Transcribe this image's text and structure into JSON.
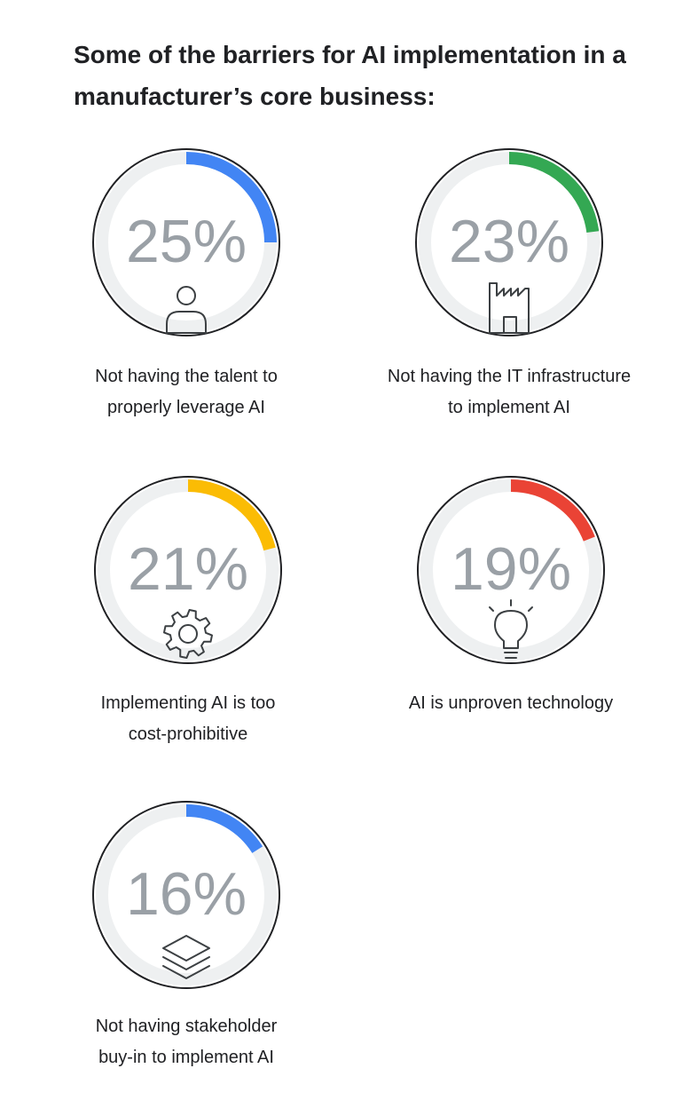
{
  "title": "Some of the barriers for AI implementation in a manufacturer’s core business:",
  "chart_data": {
    "type": "gauge",
    "items": [
      {
        "value": 25,
        "value_label": "25%",
        "label": "Not having the talent to properly leverage AI",
        "label_lines": [
          "Not having the talent to",
          "properly leverage AI"
        ],
        "color": "#4285F4",
        "icon": "person-icon"
      },
      {
        "value": 23,
        "value_label": "23%",
        "label": "Not having the IT infrastructure to implement AI",
        "label_lines": [
          "Not having the IT infrastructure",
          "to implement AI"
        ],
        "color": "#34A853",
        "icon": "factory-icon"
      },
      {
        "value": 21,
        "value_label": "21%",
        "label": "Implementing AI is too cost-prohibitive",
        "label_lines": [
          "Implementing AI is too",
          "cost-prohibitive"
        ],
        "color": "#FBBC04",
        "icon": "gear-icon"
      },
      {
        "value": 19,
        "value_label": "19%",
        "label": "AI is unproven technology",
        "label_lines": [
          "AI is unproven technology"
        ],
        "color": "#EA4335",
        "icon": "lightbulb-icon"
      },
      {
        "value": 16,
        "value_label": "16%",
        "label": "Not having stakeholder buy-in to implement AI",
        "label_lines": [
          "Not having stakeholder",
          "buy-in to implement AI"
        ],
        "color": "#4285F4",
        "icon": "layers-icon"
      }
    ],
    "track_color": "#EEF0F1",
    "outline_color": "#202124"
  }
}
